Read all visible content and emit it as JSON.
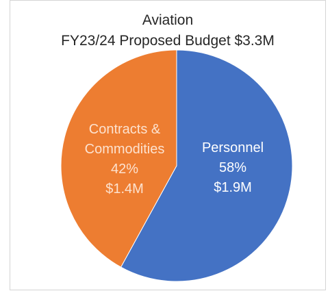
{
  "chart_data": {
    "type": "pie",
    "title": "Aviation",
    "subtitle": "FY23/24 Proposed Budget $3.3M",
    "slices": [
      {
        "label": "Personnel",
        "percent": 58,
        "amount": "$1.9M",
        "percent_text": "58%",
        "color": "#4472c4",
        "text_color": "#ffffff"
      },
      {
        "label": "Contracts &\nCommodities",
        "percent": 42,
        "amount": "$1.4M",
        "percent_text": "42%",
        "color": "#ed7d31",
        "text_color": "#fde2cf"
      }
    ],
    "legend": "none"
  }
}
